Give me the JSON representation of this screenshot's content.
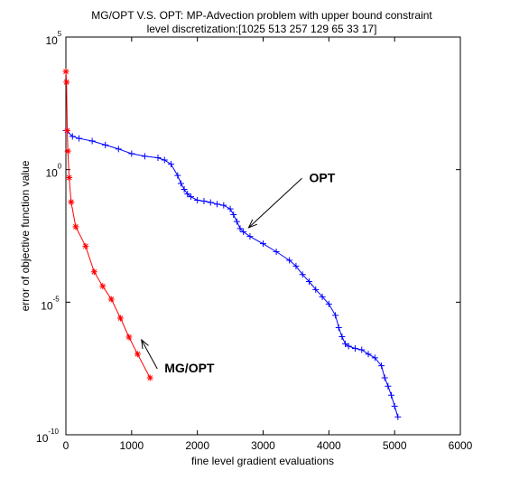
{
  "chart_data": {
    "type": "line",
    "title": "MG/OPT V.S. OPT: MP-Advection problem with upper bound constraint",
    "subtitle": "level discretization:[1025 513 257 129 65 33 17]",
    "xlabel": "fine level gradient evaluations",
    "ylabel": "error of objective function value",
    "xlim": [
      0,
      6000
    ],
    "ylim": [
      1e-10,
      100000
    ],
    "yscale": "log",
    "grid": false,
    "x_ticks": [
      "0",
      "1000",
      "2000",
      "3000",
      "4000",
      "5000",
      "6000"
    ],
    "y_ticks": [
      {
        "value": 1e-10,
        "base": "10",
        "exp": "-10"
      },
      {
        "value": 1e-05,
        "base": "10",
        "exp": "-5"
      },
      {
        "value": 1,
        "base": "10",
        "exp": "0"
      },
      {
        "value": 100000,
        "base": "10",
        "exp": "5"
      }
    ],
    "series": [
      {
        "name": "OPT",
        "color": "#0000ff",
        "marker": "plus",
        "x": [
          0,
          100,
          200,
          400,
          600,
          800,
          1000,
          1200,
          1400,
          1500,
          1600,
          1700,
          1750,
          1800,
          1850,
          1900,
          2000,
          2100,
          2200,
          2300,
          2400,
          2500,
          2550,
          2600,
          2650,
          2700,
          2800,
          3000,
          3200,
          3400,
          3500,
          3600,
          3700,
          3800,
          3900,
          4000,
          4100,
          4150,
          4200,
          4250,
          4300,
          4400,
          4500,
          4600,
          4700,
          4800,
          4850,
          4900,
          4950,
          5000,
          5050
        ],
        "y": [
          30,
          18,
          15,
          12,
          8.5,
          6,
          4,
          3.2,
          2.8,
          2.3,
          1.6,
          0.6,
          0.3,
          0.18,
          0.12,
          0.095,
          0.07,
          0.065,
          0.058,
          0.05,
          0.045,
          0.033,
          0.02,
          0.011,
          0.006,
          0.0045,
          0.003,
          0.0016,
          0.0008,
          0.00038,
          0.00023,
          0.00011,
          6e-05,
          3e-05,
          1.6e-05,
          8.5e-06,
          3.2e-06,
          1.1e-06,
          5e-07,
          2.7e-07,
          2.2e-07,
          1.8e-07,
          1.6e-07,
          1.1e-07,
          8e-08,
          4e-08,
          1.4e-08,
          6.8e-09,
          3.1e-09,
          1.2e-09,
          4.7e-10
        ]
      },
      {
        "name": "MG/OPT",
        "color": "#ff0000",
        "marker": "star",
        "x": [
          0,
          10,
          20,
          30,
          50,
          80,
          150,
          300,
          430,
          560,
          690,
          830,
          960,
          1090,
          1280
        ],
        "y": [
          5000,
          2000,
          30,
          5,
          0.5,
          0.06,
          0.007,
          0.0013,
          0.00014,
          4e-05,
          1.3e-05,
          2.5e-06,
          4.8e-07,
          1.1e-07,
          1.4e-08
        ]
      }
    ],
    "annotations": [
      {
        "text": "OPT",
        "x": 3700,
        "y": 0.55,
        "arrow_to": {
          "x": 2780,
          "y": 0.0065
        }
      },
      {
        "text": "MG/OPT",
        "x": 1500,
        "y": 3.6e-08,
        "arrow_to": {
          "x": 1150,
          "y": 3.8e-07
        }
      }
    ]
  }
}
